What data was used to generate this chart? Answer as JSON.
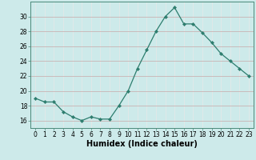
{
  "x": [
    0,
    1,
    2,
    3,
    4,
    5,
    6,
    7,
    8,
    9,
    10,
    11,
    12,
    13,
    14,
    15,
    16,
    17,
    18,
    19,
    20,
    21,
    22,
    23
  ],
  "y": [
    19.0,
    18.5,
    18.5,
    17.2,
    16.5,
    16.0,
    16.5,
    16.2,
    16.2,
    18.0,
    20.0,
    23.0,
    25.5,
    28.0,
    30.0,
    31.2,
    29.0,
    29.0,
    27.8,
    26.5,
    25.0,
    24.0,
    23.0,
    22.0
  ],
  "line_color": "#2d7d6e",
  "marker": "D",
  "marker_size": 2.2,
  "xlabel": "Humidex (Indice chaleur)",
  "ylim": [
    15.0,
    32.0
  ],
  "xlim": [
    -0.5,
    23.5
  ],
  "yticks": [
    16,
    18,
    20,
    22,
    24,
    26,
    28,
    30
  ],
  "xticks": [
    0,
    1,
    2,
    3,
    4,
    5,
    6,
    7,
    8,
    9,
    10,
    11,
    12,
    13,
    14,
    15,
    16,
    17,
    18,
    19,
    20,
    21,
    22,
    23
  ],
  "bg_color": "#cdeaea",
  "grid_x_color": "#e8e8e8",
  "grid_y_color": "#c8a8a8",
  "tick_fontsize": 5.5,
  "xlabel_fontsize": 7.0
}
